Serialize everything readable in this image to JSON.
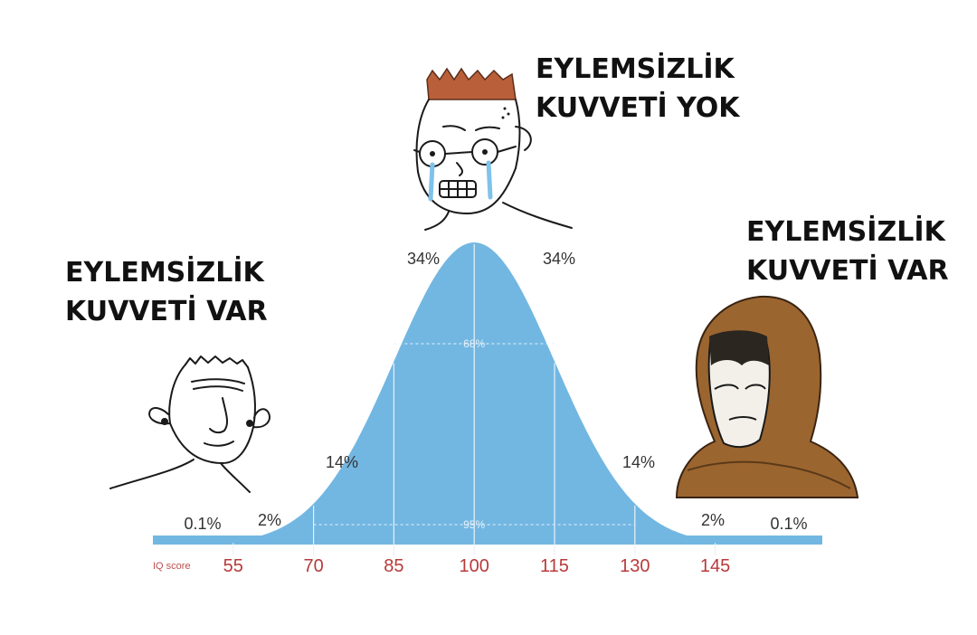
{
  "captions": {
    "left": {
      "line1": "EYLEMSİZLİK",
      "line2": "KUVVETİ VAR"
    },
    "middle": {
      "line1": "EYLEMSİZLİK",
      "line2": "KUVVETİ YOK"
    },
    "right": {
      "line1": "EYLEMSİZLİK",
      "line2": "KUVVETİ VAR"
    }
  },
  "characters": [
    {
      "name": "simple-wojak-left",
      "icon": "wojak-face-icon"
    },
    {
      "name": "crying-nerd-wojak-middle",
      "icon": "nerd-crying-wojak-icon"
    },
    {
      "name": "hooded-monk-wojak-right",
      "icon": "hooded-wojak-icon"
    }
  ],
  "colors": {
    "curve_fill": "#72b7e2",
    "tick_label": "#b83a3a",
    "axis_label": "#c0504d",
    "percent_text": "#333333",
    "inner_line": "#e6f1fa"
  },
  "chart_data": {
    "type": "area",
    "distribution": "normal",
    "mean": 100,
    "sd": 15,
    "x_axis_label": "IQ score",
    "xlim": [
      40,
      165
    ],
    "ticks": [
      55,
      70,
      85,
      100,
      115,
      130,
      145
    ],
    "region_labels": [
      {
        "range": [
          40,
          55
        ],
        "label": "0.1%"
      },
      {
        "range": [
          55,
          70
        ],
        "label": "2%"
      },
      {
        "range": [
          70,
          85
        ],
        "label": "14%"
      },
      {
        "range": [
          85,
          100
        ],
        "label": "34%"
      },
      {
        "range": [
          100,
          115
        ],
        "label": "34%"
      },
      {
        "range": [
          115,
          130
        ],
        "label": "14%"
      },
      {
        "range": [
          130,
          145
        ],
        "label": "2%"
      },
      {
        "range": [
          145,
          165
        ],
        "label": "0.1%"
      }
    ],
    "brackets": [
      {
        "range": [
          85,
          115
        ],
        "label": "68%"
      },
      {
        "range": [
          70,
          130
        ],
        "label": "95%"
      }
    ]
  }
}
